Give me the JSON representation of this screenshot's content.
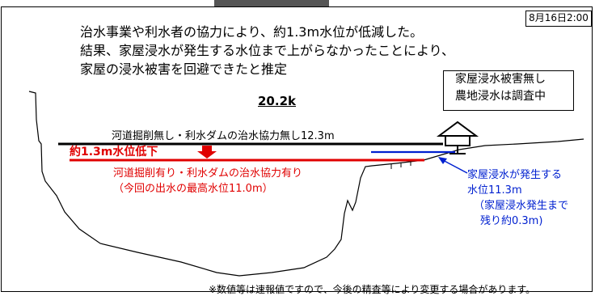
{
  "header": {
    "date_time": "8月16日2:00",
    "lead_lines": [
      "治水事業や利水者の協力により、約1.3m水位が低減した。",
      "結果、家屋浸水が発生する水位まで上がらなかったことにより、",
      "家屋の浸水被害を回避できたと推定"
    ]
  },
  "status_box": {
    "lines": [
      "家屋浸水被害無し",
      "農地浸水は調査中"
    ]
  },
  "diagram": {
    "location_label": "20.2k",
    "water_levels": {
      "without_measures": {
        "label": "河道掘削無し・利水ダムの治水協力無し12.3m",
        "level_m": 12.3,
        "color": "#000000"
      },
      "reduction": {
        "label": "約1.3m水位低下",
        "difference_m": 1.3
      },
      "with_measures": {
        "label_lines": [
          "河道掘削有り・利水ダムの治水協力有り",
          "（今回の出水の最高水位11.0m）"
        ],
        "level_m": 11.0,
        "color": "#e00000"
      },
      "house_flood_threshold": {
        "label_lines": [
          "家屋浸水が発生する",
          "水位11.3m",
          "（家屋浸水発生まで",
          "残り約0.3m)"
        ],
        "level_m": 11.3,
        "color": "#0020d0"
      }
    }
  },
  "footnote": "※数値等は速報値ですので、今後の精査等により変更する場合があります。"
}
